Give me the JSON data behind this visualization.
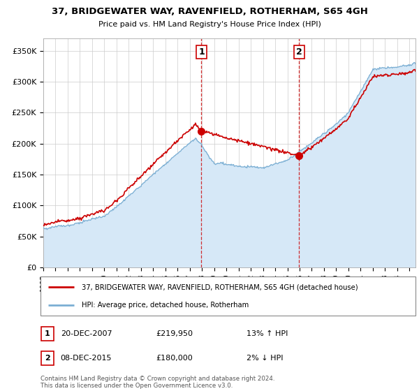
{
  "title": "37, BRIDGEWATER WAY, RAVENFIELD, ROTHERHAM, S65 4GH",
  "subtitle": "Price paid vs. HM Land Registry's House Price Index (HPI)",
  "ylabel_ticks": [
    "£0",
    "£50K",
    "£100K",
    "£150K",
    "£200K",
    "£250K",
    "£300K",
    "£350K"
  ],
  "ytick_values": [
    0,
    50000,
    100000,
    150000,
    200000,
    250000,
    300000,
    350000
  ],
  "ylim": [
    0,
    370000
  ],
  "sale1_price": 219950,
  "sale1_date": "20-DEC-2007",
  "sale1_hpi": "13% ↑ HPI",
  "sale1_year": 2007.97,
  "sale2_price": 180000,
  "sale2_date": "08-DEC-2015",
  "sale2_hpi": "2% ↓ HPI",
  "sale2_year": 2015.95,
  "legend_label1": "37, BRIDGEWATER WAY, RAVENFIELD, ROTHERHAM, S65 4GH (detached house)",
  "legend_label2": "HPI: Average price, detached house, Rotherham",
  "footer": "Contains HM Land Registry data © Crown copyright and database right 2024.\nThis data is licensed under the Open Government Licence v3.0.",
  "sale_color": "#cc0000",
  "hpi_color": "#7bafd4",
  "hpi_fill_color": "#d6e8f7",
  "grid_color": "#cccccc",
  "annotation_box_color": "#cc0000"
}
